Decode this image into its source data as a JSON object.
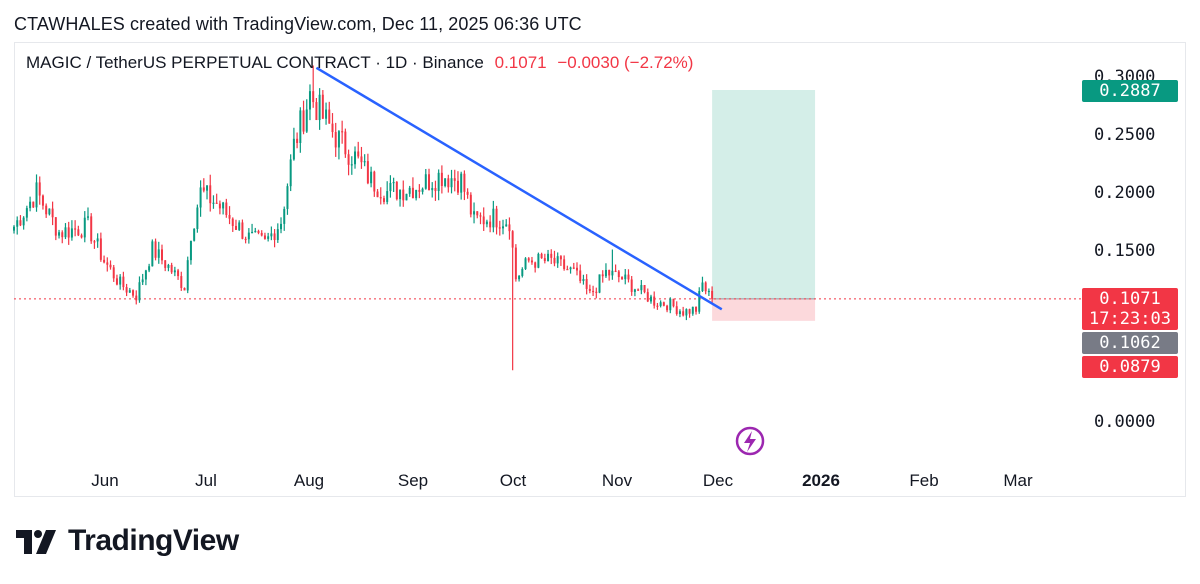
{
  "header": {
    "created_line": "CTAWHALES created with TradingView.com, Dec 11, 2025 06:36 UTC"
  },
  "symbol": {
    "name": "MAGIC / TetherUS PERPETUAL CONTRACT · 1D · Binance",
    "last": "0.1071",
    "change": "−0.0030 (−2.72%)"
  },
  "price_tags": {
    "target": "0.2887",
    "current": "0.1071",
    "countdown": "17:23:03",
    "grey": "0.1062",
    "stop": "0.0879"
  },
  "brand": {
    "name": "TradingView"
  },
  "colors": {
    "up": "#089981",
    "down": "#f23645",
    "trendline": "#2962ff",
    "target_zone": "#d4eee8",
    "stop_zone": "#fcd9dc"
  },
  "chart_data": {
    "type": "candlestick",
    "title": "MAGIC / TetherUS PERPETUAL CONTRACT · 1D · Binance",
    "x_ticks": [
      "Jun",
      "Jul",
      "Aug",
      "Sep",
      "Oct",
      "Nov",
      "Dec",
      "2026",
      "Feb",
      "Mar"
    ],
    "y_ticks": [
      "0.3000",
      "0.2500",
      "0.2000",
      "0.1500",
      "0.0000"
    ],
    "ylim": [
      0.0,
      0.3
    ],
    "x_range": [
      "2025-05-08",
      "2026-03-31"
    ],
    "trendline": {
      "from": [
        "2025-08-10",
        0.308
      ],
      "to": [
        "2025-12-14",
        0.098
      ]
    },
    "position": {
      "entry": 0.1071,
      "target": 0.2887,
      "stop": 0.0879,
      "from": "2025-12-11",
      "to": "2026-01-12"
    },
    "current_price_line": 0.1071,
    "anchors": [
      [
        "2025-05-08",
        0.17
      ],
      [
        "2025-05-15",
        0.2
      ],
      [
        "2025-05-22",
        0.165
      ],
      [
        "2025-05-31",
        0.17
      ],
      [
        "2025-06-05",
        0.14
      ],
      [
        "2025-06-10",
        0.12
      ],
      [
        "2025-06-15",
        0.11
      ],
      [
        "2025-06-20",
        0.15
      ],
      [
        "2025-06-25",
        0.135
      ],
      [
        "2025-06-30",
        0.118
      ],
      [
        "2025-07-02",
        0.165
      ],
      [
        "2025-07-05",
        0.2
      ],
      [
        "2025-07-10",
        0.19
      ],
      [
        "2025-07-15",
        0.175
      ],
      [
        "2025-07-20",
        0.16
      ],
      [
        "2025-07-25",
        0.155
      ],
      [
        "2025-07-30",
        0.175
      ],
      [
        "2025-08-03",
        0.24
      ],
      [
        "2025-08-08",
        0.285
      ],
      [
        "2025-08-12",
        0.265
      ],
      [
        "2025-08-17",
        0.245
      ],
      [
        "2025-08-22",
        0.23
      ],
      [
        "2025-08-27",
        0.21
      ],
      [
        "2025-09-01",
        0.2
      ],
      [
        "2025-09-10",
        0.205
      ],
      [
        "2025-09-18",
        0.215
      ],
      [
        "2025-09-24",
        0.21
      ],
      [
        "2025-09-28",
        0.175
      ],
      [
        "2025-10-04",
        0.178
      ],
      [
        "2025-10-09",
        0.175
      ],
      [
        "2025-10-11",
        0.125
      ],
      [
        "2025-10-15",
        0.14
      ],
      [
        "2025-10-22",
        0.14
      ],
      [
        "2025-10-29",
        0.13
      ],
      [
        "2025-11-03",
        0.11
      ],
      [
        "2025-11-08",
        0.13
      ],
      [
        "2025-11-13",
        0.125
      ],
      [
        "2025-11-18",
        0.115
      ],
      [
        "2025-11-23",
        0.105
      ],
      [
        "2025-11-28",
        0.102
      ],
      [
        "2025-12-02",
        0.096
      ],
      [
        "2025-12-06",
        0.098
      ],
      [
        "2025-12-08",
        0.12
      ],
      [
        "2025-12-10",
        0.11
      ],
      [
        "2025-12-11",
        0.1071
      ]
    ],
    "extremes": [
      {
        "date": "2025-08-09",
        "high": 0.31
      },
      {
        "date": "2025-10-10",
        "low": 0.045
      },
      {
        "date": "2025-11-10",
        "high": 0.15
      }
    ]
  }
}
